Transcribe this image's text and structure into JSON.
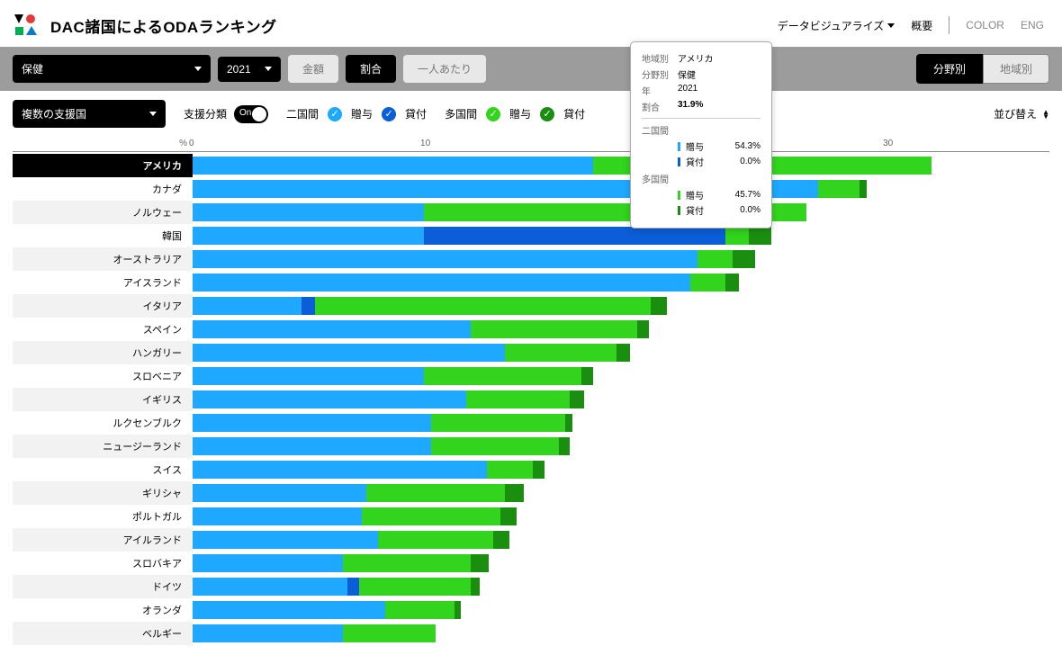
{
  "header": {
    "title": "DAC諸国によるODAランキング",
    "nav_dataviz": "データビジュアライズ",
    "nav_overview": "概要",
    "nav_color": "COLOR",
    "nav_lang": "ENG"
  },
  "controls": {
    "category_select": "保健",
    "year_select": "2021",
    "btn_amount": "金額",
    "btn_ratio": "割合",
    "btn_percapita": "一人あたり",
    "tab_by_field": "分野別",
    "tab_by_region": "地域別"
  },
  "filters": {
    "multi_donor": "複数の支援国",
    "support_class": "支援分類",
    "toggle_on": "On",
    "bilateral": "二国間",
    "grant": "贈与",
    "loan": "貸付",
    "multilateral": "多国間",
    "sort_label": "並び替え"
  },
  "axis": {
    "unit": "%",
    "ticks": [
      0,
      10,
      30
    ],
    "tick_positions_pct": [
      0,
      27,
      81
    ],
    "max_value": 37
  },
  "colors": {
    "bilateral_grant": "#1ea8ff",
    "bilateral_loan": "#0b5ed7",
    "multilateral_grant": "#32d41d",
    "multilateral_loan": "#1a8f0f",
    "row_alt_bg": "#f2f2f2",
    "selected_bg": "#000000"
  },
  "tooltip": {
    "region_k": "地域別",
    "region_v": "アメリカ",
    "field_k": "分野別",
    "field_v": "保健",
    "year_k": "年",
    "year_v": "2021",
    "ratio_k": "割合",
    "ratio_v": "31.9%",
    "bilateral": "二国間",
    "multilateral": "多国間",
    "grant": "贈与",
    "loan": "貸付",
    "bi_grant_pct": "54.3%",
    "bi_loan_pct": "0.0%",
    "ml_grant_pct": "45.7%",
    "ml_loan_pct": "0.0%"
  },
  "rows": [
    {
      "label": "アメリカ",
      "selected": true,
      "segs": [
        {
          "c": "bilateral_grant",
          "v": 17.3
        },
        {
          "c": "multilateral_grant",
          "v": 14.6
        }
      ]
    },
    {
      "label": "カナダ",
      "segs": [
        {
          "c": "bilateral_grant",
          "v": 27.0
        },
        {
          "c": "multilateral_grant",
          "v": 1.8
        },
        {
          "c": "multilateral_loan",
          "v": 0.3
        }
      ]
    },
    {
      "label": "ノルウェー",
      "segs": [
        {
          "c": "bilateral_grant",
          "v": 10.0
        },
        {
          "c": "multilateral_grant",
          "v": 16.5
        }
      ]
    },
    {
      "label": "韓国",
      "segs": [
        {
          "c": "bilateral_grant",
          "v": 10.0
        },
        {
          "c": "bilateral_loan",
          "v": 13.0
        },
        {
          "c": "multilateral_grant",
          "v": 1.0
        },
        {
          "c": "multilateral_loan",
          "v": 1.0
        }
      ]
    },
    {
      "label": "オーストラリア",
      "segs": [
        {
          "c": "bilateral_grant",
          "v": 21.8
        },
        {
          "c": "multilateral_grant",
          "v": 1.5
        },
        {
          "c": "multilateral_loan",
          "v": 1.0
        }
      ]
    },
    {
      "label": "アイスランド",
      "segs": [
        {
          "c": "bilateral_grant",
          "v": 21.5
        },
        {
          "c": "multilateral_grant",
          "v": 1.5
        },
        {
          "c": "multilateral_loan",
          "v": 0.6
        }
      ]
    },
    {
      "label": "イタリア",
      "segs": [
        {
          "c": "bilateral_grant",
          "v": 4.7
        },
        {
          "c": "bilateral_loan",
          "v": 0.6
        },
        {
          "c": "multilateral_grant",
          "v": 14.5
        },
        {
          "c": "multilateral_loan",
          "v": 0.7
        }
      ]
    },
    {
      "label": "スペイン",
      "segs": [
        {
          "c": "bilateral_grant",
          "v": 12.0
        },
        {
          "c": "multilateral_grant",
          "v": 7.2
        },
        {
          "c": "multilateral_loan",
          "v": 0.5
        }
      ]
    },
    {
      "label": "ハンガリー",
      "segs": [
        {
          "c": "bilateral_grant",
          "v": 13.5
        },
        {
          "c": "multilateral_grant",
          "v": 4.8
        },
        {
          "c": "multilateral_loan",
          "v": 0.6
        }
      ]
    },
    {
      "label": "スロベニア",
      "segs": [
        {
          "c": "bilateral_grant",
          "v": 10.0
        },
        {
          "c": "multilateral_grant",
          "v": 6.8
        },
        {
          "c": "multilateral_loan",
          "v": 0.5
        }
      ]
    },
    {
      "label": "イギリス",
      "segs": [
        {
          "c": "bilateral_grant",
          "v": 11.8
        },
        {
          "c": "multilateral_grant",
          "v": 4.5
        },
        {
          "c": "multilateral_loan",
          "v": 0.6
        }
      ]
    },
    {
      "label": "ルクセンブルク",
      "segs": [
        {
          "c": "bilateral_grant",
          "v": 10.3
        },
        {
          "c": "multilateral_grant",
          "v": 5.8
        },
        {
          "c": "multilateral_loan",
          "v": 0.3
        }
      ]
    },
    {
      "label": "ニュージーランド",
      "segs": [
        {
          "c": "bilateral_grant",
          "v": 10.3
        },
        {
          "c": "multilateral_grant",
          "v": 5.5
        },
        {
          "c": "multilateral_loan",
          "v": 0.5
        }
      ]
    },
    {
      "label": "スイス",
      "segs": [
        {
          "c": "bilateral_grant",
          "v": 12.7
        },
        {
          "c": "multilateral_grant",
          "v": 2.0
        },
        {
          "c": "multilateral_loan",
          "v": 0.5
        }
      ]
    },
    {
      "label": "ギリシャ",
      "segs": [
        {
          "c": "bilateral_grant",
          "v": 7.5
        },
        {
          "c": "multilateral_grant",
          "v": 6.0
        },
        {
          "c": "multilateral_loan",
          "v": 0.8
        }
      ]
    },
    {
      "label": "ポルトガル",
      "segs": [
        {
          "c": "bilateral_grant",
          "v": 7.3
        },
        {
          "c": "multilateral_grant",
          "v": 6.0
        },
        {
          "c": "multilateral_loan",
          "v": 0.7
        }
      ]
    },
    {
      "label": "アイルランド",
      "segs": [
        {
          "c": "bilateral_grant",
          "v": 8.0
        },
        {
          "c": "multilateral_grant",
          "v": 5.0
        },
        {
          "c": "multilateral_loan",
          "v": 0.7
        }
      ]
    },
    {
      "label": "スロバキア",
      "segs": [
        {
          "c": "bilateral_grant",
          "v": 6.5
        },
        {
          "c": "multilateral_grant",
          "v": 5.5
        },
        {
          "c": "multilateral_loan",
          "v": 0.8
        }
      ]
    },
    {
      "label": "ドイツ",
      "segs": [
        {
          "c": "bilateral_grant",
          "v": 6.7
        },
        {
          "c": "bilateral_loan",
          "v": 0.5
        },
        {
          "c": "multilateral_grant",
          "v": 4.8
        },
        {
          "c": "multilateral_loan",
          "v": 0.4
        }
      ]
    },
    {
      "label": "オランダ",
      "segs": [
        {
          "c": "bilateral_grant",
          "v": 8.3
        },
        {
          "c": "multilateral_grant",
          "v": 3.0
        },
        {
          "c": "multilateral_loan",
          "v": 0.3
        }
      ]
    },
    {
      "label": "ベルギー",
      "segs": [
        {
          "c": "bilateral_grant",
          "v": 6.5
        },
        {
          "c": "multilateral_grant",
          "v": 4.0
        }
      ]
    }
  ]
}
